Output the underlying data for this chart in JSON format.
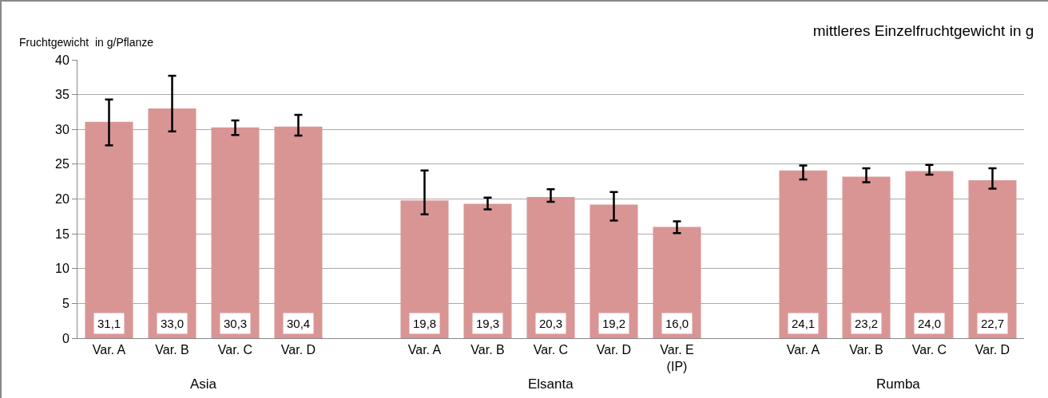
{
  "chart_data": {
    "type": "bar",
    "title": "mittleres Einzelfruchtgewicht in g",
    "ylabel": "Fruchtgewicht  in g/Pflanze",
    "categories": [
      "Var. A",
      "Var. B",
      "Var. C",
      "Var. D",
      null,
      "Var. A",
      "Var. B",
      "Var. C",
      "Var. D",
      "Var. E\n(IP)",
      null,
      "Var. A",
      "Var. B",
      "Var. C",
      "Var. D"
    ],
    "values": [
      31.1,
      33.0,
      30.3,
      30.4,
      null,
      19.8,
      19.3,
      20.3,
      19.2,
      16.0,
      null,
      24.1,
      23.2,
      24.0,
      22.7
    ],
    "value_labels": [
      "31,1",
      "33,0",
      "30,3",
      "30,4",
      null,
      "19,8",
      "19,3",
      "20,3",
      "19,2",
      "16,0",
      null,
      "24,1",
      "23,2",
      "24,0",
      "22,7"
    ],
    "errors": [
      [
        27.7,
        34.3
      ],
      [
        29.7,
        37.7
      ],
      [
        29.2,
        31.3
      ],
      [
        29.1,
        32.1
      ],
      null,
      [
        17.8,
        24.1
      ],
      [
        18.5,
        20.2
      ],
      [
        19.6,
        21.4
      ],
      [
        16.9,
        21.0
      ],
      [
        15.1,
        16.8
      ],
      null,
      [
        22.8,
        24.8
      ],
      [
        22.4,
        24.4
      ],
      [
        23.5,
        24.9
      ],
      [
        21.5,
        24.4
      ]
    ],
    "color": "#d99594",
    "annotations": [
      "Asia",
      "Elsanta",
      "Rumba"
    ],
    "ylim": [
      0,
      40
    ],
    "yticks": [
      0,
      5,
      10,
      15,
      20,
      25,
      30,
      35,
      40
    ],
    "grid": "y"
  }
}
